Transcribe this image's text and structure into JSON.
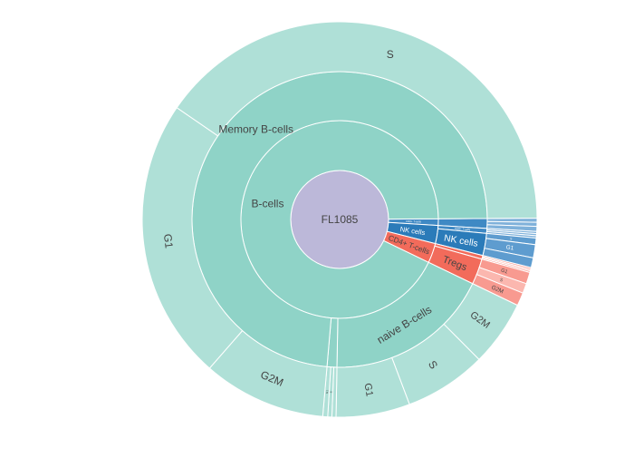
{
  "chart_data": {
    "type": "sunburst",
    "colors": {
      "root": "#bcb8d9",
      "bcell_l2": "#8fd3c7",
      "bcell_l3": "#afe0d7",
      "nk_l2": "#2b7bb9",
      "nk_l3": "#5e9ccf",
      "cd8_l2": "#3f89c4",
      "cd8_l3": "#7fb1da",
      "t_l2": "#f26b5b",
      "t_l3": "#f89a90",
      "t_l3b": "#fbb7af",
      "stroke": "#ffffff",
      "text_dark": "#444444",
      "text_light": "#ffffff"
    },
    "root": {
      "name": "FL1085",
      "children": [
        {
          "name": "CD8+ T-cells",
          "value": 8,
          "colorKey": "cd8",
          "children": [
            {
              "name": "",
              "value": 8,
              "children": [
                {
                  "name": "",
                  "value": 2.5
                },
                {
                  "name": "",
                  "value": 2.5
                },
                {
                  "name": "",
                  "value": 3
                }
              ]
            }
          ]
        },
        {
          "name": "NK cells",
          "value": 22,
          "colorKey": "nk",
          "children": [
            {
              "name": "CD8+ T-cells",
              "value": 4,
              "colorKey": "cd8",
              "children": [
                {
                  "name": "",
                  "value": 1.3
                },
                {
                  "name": "",
                  "value": 1.3
                },
                {
                  "name": "",
                  "value": 1.4
                }
              ]
            },
            {
              "name": "NK cells",
              "value": 18,
              "colorKey": "nk",
              "children": [
                {
                  "name": "S",
                  "value": 4
                },
                {
                  "name": "G1",
                  "value": 8
                },
                {
                  "name": "",
                  "value": 6
                }
              ]
            }
          ]
        },
        {
          "name": "CD4+ T-cells",
          "value": 24,
          "colorKey": "t",
          "children": [
            {
              "name": "",
              "value": 3,
              "children": [
                {
                  "name": "",
                  "value": 1
                },
                {
                  "name": "",
                  "value": 1
                },
                {
                  "name": "",
                  "value": 1
                }
              ]
            },
            {
              "name": "Tregs",
              "value": 21,
              "children": [
                {
                  "name": "G1",
                  "value": 7
                },
                {
                  "name": "S",
                  "value": 6
                },
                {
                  "name": "G2M",
                  "value": 8
                }
              ]
            }
          ]
        },
        {
          "name": "B-cells",
          "value": 690,
          "colorKey": "b",
          "children": [
            {
              "name": "naive B-cells",
              "value": 135,
              "children": [
                {
                  "name": "G2M",
                  "value": 40
                },
                {
                  "name": "S",
                  "value": 50
                },
                {
                  "name": "G1",
                  "value": 45
                }
              ]
            },
            {
              "name": "",
              "value": 8,
              "children": [
                {
                  "name": "",
                  "value": 2.5
                },
                {
                  "name": "S",
                  "value": 2.5
                },
                {
                  "name": "G1",
                  "value": 3
                }
              ]
            },
            {
              "name": "Memory B-cells",
              "value": 547,
              "children": [
                {
                  "name": "G2M",
                  "value": 75
                },
                {
                  "name": "G1",
                  "value": 172
                },
                {
                  "name": "S",
                  "value": 300
                }
              ]
            }
          ]
        }
      ]
    }
  }
}
